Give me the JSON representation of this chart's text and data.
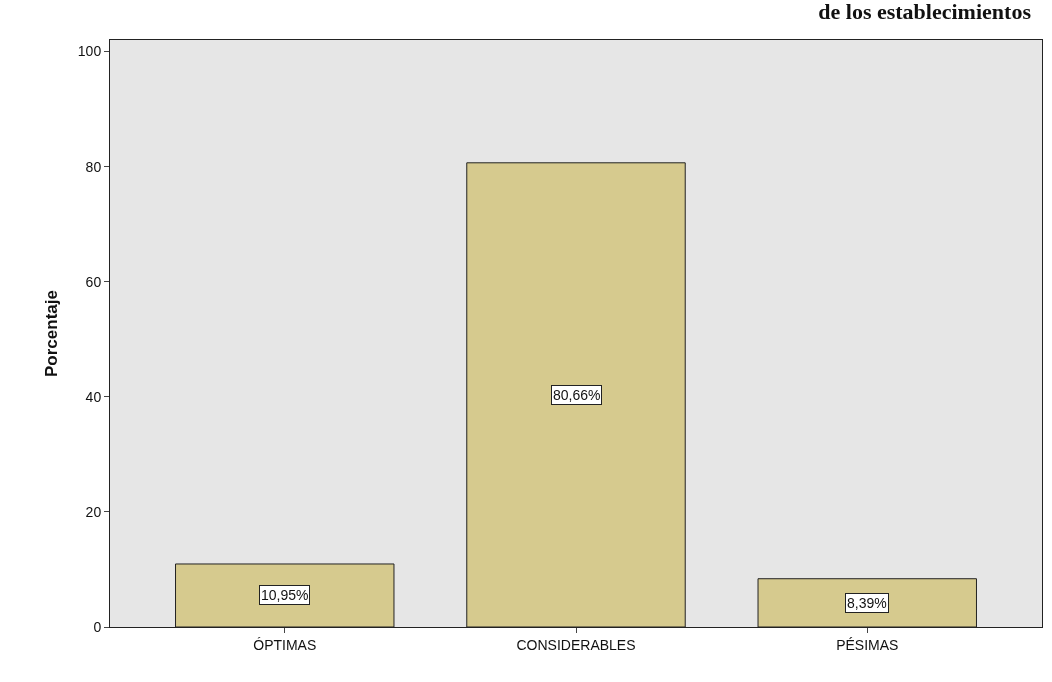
{
  "chart_data": {
    "type": "bar",
    "title": "de los establecimientos",
    "ylabel": "Porcentaje",
    "categories": [
      "ÓPTIMAS",
      "CONSIDERABLES",
      "PÉSIMAS"
    ],
    "values": [
      10.95,
      80.66,
      8.39
    ],
    "value_labels": [
      "10,95%",
      "80,66%",
      "8,39%"
    ],
    "color": "#d6ca8e",
    "ylim": [
      0,
      102
    ],
    "yticks": [
      0,
      20,
      40,
      60,
      80,
      100
    ],
    "grid": false,
    "legend": false
  }
}
